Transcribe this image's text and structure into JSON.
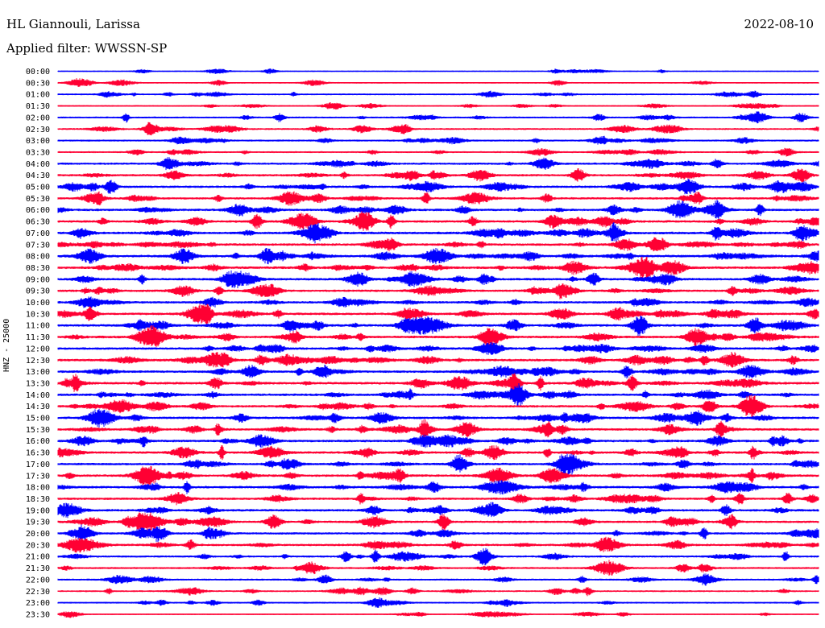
{
  "header": {
    "station": "HL Giannouli, Larissa",
    "date": "2022-08-10",
    "filter": "Applied filter: WWSSN-SP"
  },
  "chart_data": {
    "type": "line",
    "title": "HL Giannouli, Larissa",
    "subtitle": "Applied filter: WWSSN-SP",
    "ylabel": "HNZ - 25000",
    "xlabel": "",
    "trace_colors": [
      "#0000ff",
      "#ff0033"
    ],
    "row_labels": [
      "00:00",
      "00:30",
      "01:00",
      "01:30",
      "02:00",
      "02:30",
      "03:00",
      "03:30",
      "04:00",
      "04:30",
      "05:00",
      "05:30",
      "06:00",
      "06:30",
      "07:00",
      "07:30",
      "08:00",
      "08:30",
      "09:00",
      "09:30",
      "10:00",
      "10:30",
      "11:00",
      "11:30",
      "12:00",
      "12:30",
      "13:00",
      "13:30",
      "14:00",
      "14:30",
      "15:00",
      "15:30",
      "16:00",
      "16:30",
      "17:00",
      "17:30",
      "18:00",
      "18:30",
      "19:00",
      "19:30",
      "20:00",
      "20:30",
      "21:00",
      "21:30",
      "22:00",
      "22:30",
      "23:00",
      "23:30"
    ],
    "row_activity": [
      0.15,
      0.25,
      0.35,
      0.3,
      0.45,
      0.5,
      0.5,
      0.45,
      0.65,
      0.7,
      0.75,
      0.7,
      0.75,
      0.8,
      0.85,
      0.8,
      0.85,
      0.85,
      0.8,
      0.75,
      0.75,
      0.8,
      0.85,
      0.85,
      0.8,
      0.85,
      0.8,
      0.85,
      0.8,
      0.75,
      0.8,
      0.8,
      0.8,
      0.8,
      0.75,
      0.8,
      0.8,
      0.75,
      0.75,
      0.75,
      0.7,
      0.7,
      0.6,
      0.55,
      0.5,
      0.45,
      0.4,
      0.25
    ],
    "grid": false,
    "legend": "none"
  }
}
